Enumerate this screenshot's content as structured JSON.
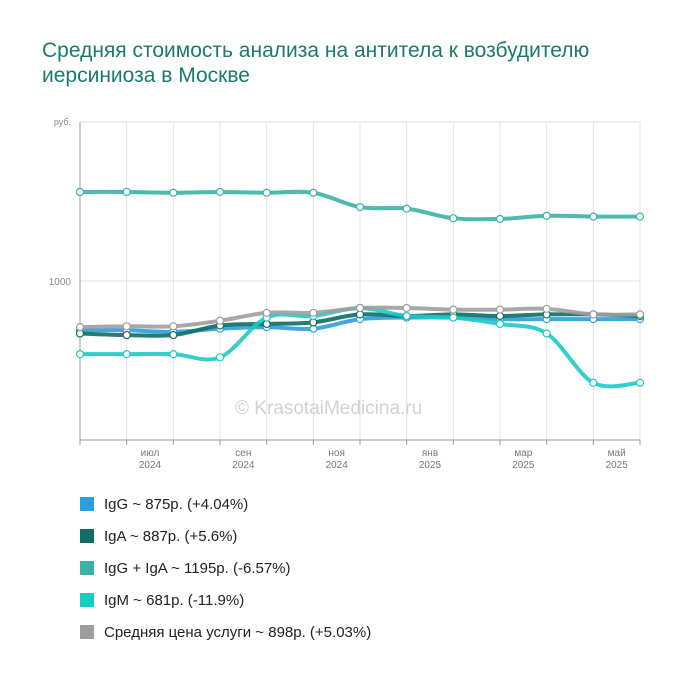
{
  "title": "Средняя стоимость анализа на антитела к возбудителю иерсиниоза в Москве",
  "watermark": "© KrasotaiMedicina.ru",
  "chart_data": {
    "type": "line",
    "ylabel": "руб.",
    "yticks": [
      1000
    ],
    "ylim": [
      0,
      2000
    ],
    "x": [
      "2024-05",
      "2024-06",
      "2024-07",
      "2024-08",
      "2024-09",
      "2024-10",
      "2024-11",
      "2024-12",
      "2025-01",
      "2025-02",
      "2025-03",
      "2025-04",
      "2025-05"
    ],
    "xtick_labels": [
      {
        "month": "июл",
        "year": "2024",
        "index": 1
      },
      {
        "month": "сен",
        "year": "2024",
        "index": 3
      },
      {
        "month": "ноя",
        "year": "2024",
        "index": 5
      },
      {
        "month": "янв",
        "year": "2025",
        "index": 7
      },
      {
        "month": "мар",
        "year": "2025",
        "index": 9
      },
      {
        "month": "май",
        "year": "2025",
        "index": 11
      }
    ],
    "series": [
      {
        "name": "IgG",
        "color": "#2b9fde",
        "values": [
          690,
          690,
          680,
          700,
          710,
          700,
          760,
          770,
          770,
          760,
          760,
          760,
          760
        ]
      },
      {
        "name": "IgA",
        "color": "#0f6e62",
        "values": [
          670,
          660,
          660,
          720,
          730,
          740,
          790,
          780,
          790,
          780,
          790,
          790,
          780
        ]
      },
      {
        "name": "IgG + IgA",
        "color": "#3ab3a4",
        "values": [
          1560,
          1560,
          1555,
          1560,
          1555,
          1555,
          1465,
          1455,
          1395,
          1390,
          1410,
          1405,
          1405
        ]
      },
      {
        "name": "IgM",
        "color": "#1ccac6",
        "values": [
          540,
          540,
          540,
          520,
          770,
          780,
          830,
          780,
          770,
          730,
          670,
          360,
          360
        ]
      },
      {
        "name": "Средняя цена услуги",
        "color": "#9e9e9e",
        "values": [
          710,
          715,
          715,
          750,
          800,
          800,
          830,
          830,
          820,
          820,
          825,
          790,
          790
        ]
      }
    ],
    "legend_placement": "bottom",
    "grid": true
  },
  "legend": [
    {
      "text": "IgG ~ 875р. (+4.04%)",
      "color": "#2b9fde"
    },
    {
      "text": "IgA ~ 887р. (+5.6%)",
      "color": "#0f6e62"
    },
    {
      "text": "IgG + IgA ~ 1195р. (-6.57%)",
      "color": "#3ab3a4"
    },
    {
      "text": "IgM ~ 681р. (-11.9%)",
      "color": "#1ccac6"
    },
    {
      "text": "Средняя цена услуги ~ 898р. (+5.03%)",
      "color": "#9e9e9e"
    }
  ]
}
